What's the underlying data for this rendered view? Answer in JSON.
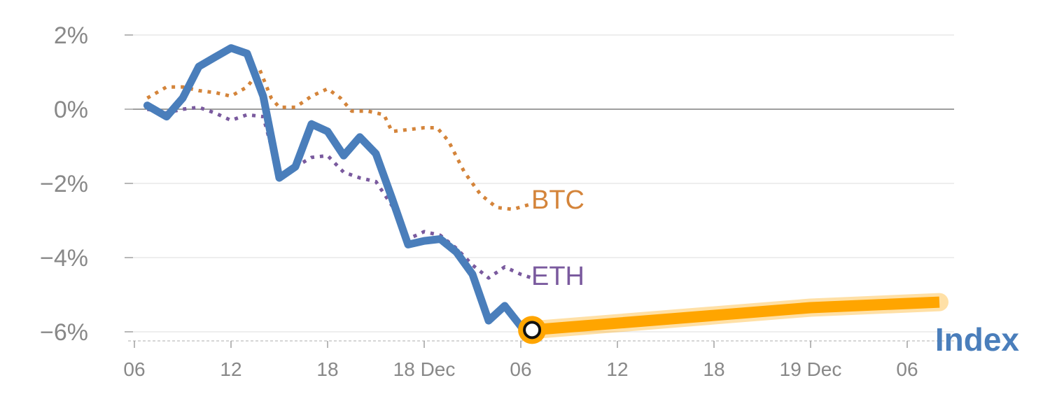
{
  "chart_data": {
    "type": "line",
    "title": "",
    "xlabel": "",
    "ylabel": "",
    "ylim": [
      -6.3,
      2.2
    ],
    "grid": true,
    "y_ticks": [
      {
        "value": 2,
        "label": "2%"
      },
      {
        "value": 0,
        "label": "0%"
      },
      {
        "value": -2,
        "label": "−2%"
      },
      {
        "value": -4,
        "label": "−4%"
      },
      {
        "value": -6,
        "label": "−6%"
      }
    ],
    "x_ticks": [
      {
        "hour": 0,
        "label": "06"
      },
      {
        "hour": 6,
        "label": "12"
      },
      {
        "hour": 12,
        "label": "18"
      },
      {
        "hour": 18,
        "label": "18 Dec"
      },
      {
        "hour": 24,
        "label": "06"
      },
      {
        "hour": 30,
        "label": "12"
      },
      {
        "hour": 36,
        "label": "18"
      },
      {
        "hour": 42,
        "label": "19 Dec"
      },
      {
        "hour": 48,
        "label": "06"
      }
    ],
    "series": [
      {
        "name": "Index",
        "color": "#4a7ebb",
        "style": "solid",
        "points": [
          [
            0.8,
            0.1
          ],
          [
            2,
            -0.2
          ],
          [
            3,
            0.3
          ],
          [
            4,
            1.15
          ],
          [
            5,
            1.4
          ],
          [
            6,
            1.65
          ],
          [
            7,
            1.5
          ],
          [
            8,
            0.35
          ],
          [
            9,
            -1.85
          ],
          [
            10,
            -1.55
          ],
          [
            11,
            -0.4
          ],
          [
            12,
            -0.6
          ],
          [
            13,
            -1.25
          ],
          [
            14,
            -0.75
          ],
          [
            15,
            -1.2
          ],
          [
            16,
            -2.4
          ],
          [
            17,
            -3.65
          ],
          [
            18,
            -3.55
          ],
          [
            19,
            -3.5
          ],
          [
            20,
            -3.85
          ],
          [
            21,
            -4.45
          ],
          [
            22,
            -5.7
          ],
          [
            23,
            -5.3
          ],
          [
            24,
            -5.85
          ],
          [
            24.7,
            -5.95
          ]
        ]
      },
      {
        "name": "BTC",
        "color": "#d4843a",
        "style": "dotted",
        "points": [
          [
            0.8,
            0.3
          ],
          [
            2,
            0.6
          ],
          [
            3,
            0.6
          ],
          [
            4,
            0.5
          ],
          [
            5,
            0.45
          ],
          [
            6,
            0.35
          ],
          [
            7,
            0.6
          ],
          [
            7.8,
            1.05
          ],
          [
            8.5,
            0.3
          ],
          [
            9,
            0.05
          ],
          [
            10,
            0.05
          ],
          [
            11,
            0.35
          ],
          [
            12,
            0.55
          ],
          [
            12.8,
            0.3
          ],
          [
            13.5,
            -0.05
          ],
          [
            14.5,
            -0.05
          ],
          [
            15.5,
            -0.15
          ],
          [
            16,
            -0.6
          ],
          [
            17,
            -0.55
          ],
          [
            18,
            -0.5
          ],
          [
            18.8,
            -0.5
          ],
          [
            19.5,
            -0.85
          ],
          [
            20.5,
            -1.7
          ],
          [
            21.5,
            -2.3
          ],
          [
            22.5,
            -2.65
          ],
          [
            23.5,
            -2.7
          ],
          [
            24.7,
            -2.55
          ]
        ]
      },
      {
        "name": "ETH",
        "color": "#7a5a9e",
        "style": "dotted",
        "points": [
          [
            0.8,
            0.0
          ],
          [
            2,
            -0.1
          ],
          [
            3,
            0.0
          ],
          [
            4,
            0.05
          ],
          [
            5,
            -0.1
          ],
          [
            6,
            -0.3
          ],
          [
            7,
            -0.15
          ],
          [
            8,
            -0.2
          ],
          [
            9,
            -1.8
          ],
          [
            10,
            -1.55
          ],
          [
            11,
            -1.3
          ],
          [
            12,
            -1.25
          ],
          [
            13,
            -1.7
          ],
          [
            14,
            -1.85
          ],
          [
            15,
            -1.95
          ],
          [
            16,
            -2.6
          ],
          [
            17,
            -3.5
          ],
          [
            18,
            -3.3
          ],
          [
            19,
            -3.4
          ],
          [
            20,
            -3.75
          ],
          [
            21,
            -4.2
          ],
          [
            22,
            -4.55
          ],
          [
            23,
            -4.25
          ],
          [
            24,
            -4.45
          ],
          [
            24.7,
            -4.55
          ]
        ]
      }
    ],
    "projection": {
      "color": "#ffa500",
      "points": [
        [
          24.7,
          -5.95
        ],
        [
          42,
          -5.35
        ],
        [
          50,
          -5.2
        ]
      ]
    },
    "marker": {
      "series": "Index",
      "point": [
        24.7,
        -5.95
      ]
    }
  }
}
